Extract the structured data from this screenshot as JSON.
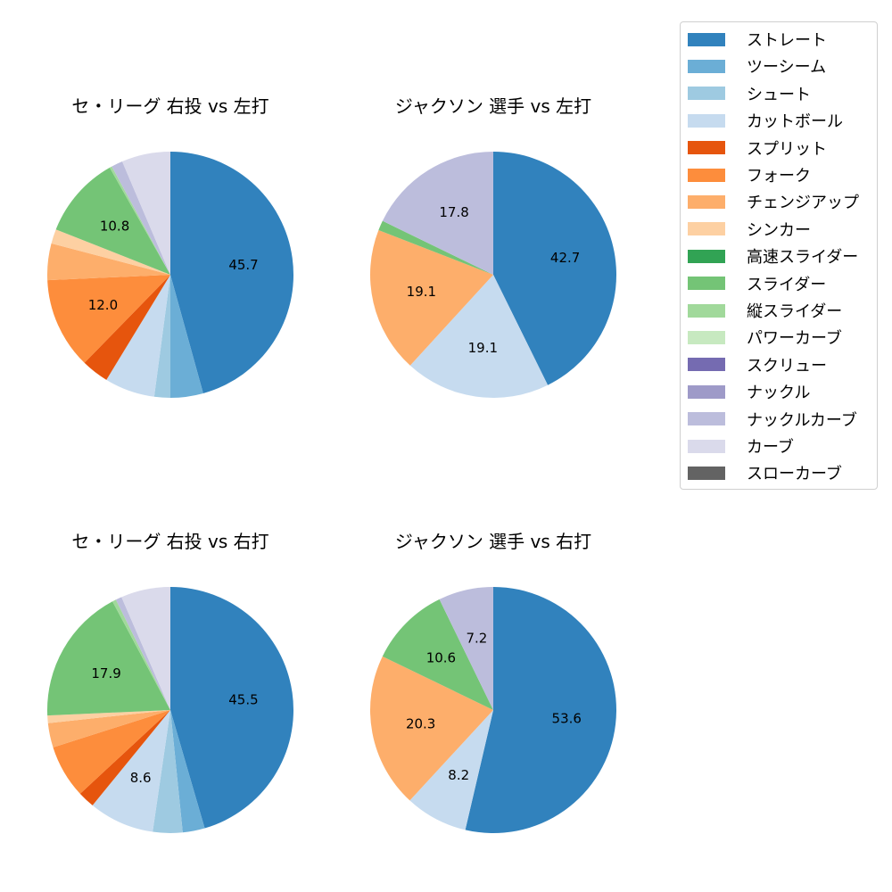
{
  "legend": {
    "items": [
      {
        "label": "ストレート",
        "color": "#3182bd"
      },
      {
        "label": "ツーシーム",
        "color": "#6baed6"
      },
      {
        "label": "シュート",
        "color": "#9ecae1"
      },
      {
        "label": "カットボール",
        "color": "#c6dbef"
      },
      {
        "label": "スプリット",
        "color": "#e6550d"
      },
      {
        "label": "フォーク",
        "color": "#fd8d3c"
      },
      {
        "label": "チェンジアップ",
        "color": "#fdae6b"
      },
      {
        "label": "シンカー",
        "color": "#fdd0a2"
      },
      {
        "label": "高速スライダー",
        "color": "#31a354"
      },
      {
        "label": "スライダー",
        "color": "#74c476"
      },
      {
        "label": "縦スライダー",
        "color": "#a1d99b"
      },
      {
        "label": "パワーカーブ",
        "color": "#c7e9c0"
      },
      {
        "label": "スクリュー",
        "color": "#756bb1"
      },
      {
        "label": "ナックル",
        "color": "#9e9ac8"
      },
      {
        "label": "ナックルカーブ",
        "color": "#bcbddc"
      },
      {
        "label": "カーブ",
        "color": "#dadaeb"
      },
      {
        "label": "スローカーブ",
        "color": "#636363"
      }
    ]
  },
  "chart_data": [
    {
      "type": "pie",
      "title": "セ・リーグ 右投 vs 左打",
      "start_angle": 90,
      "direction": "clockwise",
      "slices": [
        {
          "label": "ストレート",
          "value": 45.7,
          "shown": "45.7"
        },
        {
          "label": "ツーシーム",
          "value": 4.3
        },
        {
          "label": "シュート",
          "value": 2.1
        },
        {
          "label": "カットボール",
          "value": 6.6
        },
        {
          "label": "スプリット",
          "value": 3.6
        },
        {
          "label": "フォーク",
          "value": 12.0,
          "shown": "12.0"
        },
        {
          "label": "チェンジアップ",
          "value": 4.8
        },
        {
          "label": "シンカー",
          "value": 1.9
        },
        {
          "label": "スライダー",
          "value": 10.8,
          "shown": "10.8"
        },
        {
          "label": "縦スライダー",
          "value": 0.3
        },
        {
          "label": "ナックルカーブ",
          "value": 1.5
        },
        {
          "label": "カーブ",
          "value": 6.4
        }
      ]
    },
    {
      "type": "pie",
      "title": "ジャクソン 選手 vs 左打",
      "start_angle": 90,
      "direction": "clockwise",
      "slices": [
        {
          "label": "ストレート",
          "value": 42.7,
          "shown": "42.7"
        },
        {
          "label": "カットボール",
          "value": 19.1,
          "shown": "19.1"
        },
        {
          "label": "チェンジアップ",
          "value": 19.1,
          "shown": "19.1"
        },
        {
          "label": "スライダー",
          "value": 1.3
        },
        {
          "label": "ナックルカーブ",
          "value": 17.8,
          "shown": "17.8"
        }
      ]
    },
    {
      "type": "pie",
      "title": "セ・リーグ 右投 vs 右打",
      "start_angle": 90,
      "direction": "clockwise",
      "slices": [
        {
          "label": "ストレート",
          "value": 45.5,
          "shown": "45.5"
        },
        {
          "label": "ツーシーム",
          "value": 2.9
        },
        {
          "label": "シュート",
          "value": 3.9
        },
        {
          "label": "カットボール",
          "value": 8.6,
          "shown": "8.6"
        },
        {
          "label": "スプリット",
          "value": 2.2
        },
        {
          "label": "フォーク",
          "value": 7.0
        },
        {
          "label": "チェンジアップ",
          "value": 3.2
        },
        {
          "label": "シンカー",
          "value": 1.0
        },
        {
          "label": "スライダー",
          "value": 17.9,
          "shown": "17.9"
        },
        {
          "label": "縦スライダー",
          "value": 0.5
        },
        {
          "label": "ナックルカーブ",
          "value": 0.8
        },
        {
          "label": "カーブ",
          "value": 6.5
        }
      ]
    },
    {
      "type": "pie",
      "title": "ジャクソン 選手 vs 右打",
      "start_angle": 90,
      "direction": "clockwise",
      "slices": [
        {
          "label": "ストレート",
          "value": 53.6,
          "shown": "53.6"
        },
        {
          "label": "カットボール",
          "value": 8.2,
          "shown": "8.2"
        },
        {
          "label": "チェンジアップ",
          "value": 20.3,
          "shown": "20.3"
        },
        {
          "label": "スライダー",
          "value": 10.6,
          "shown": "10.6"
        },
        {
          "label": "ナックルカーブ",
          "value": 7.2,
          "shown": "7.2"
        }
      ]
    }
  ]
}
